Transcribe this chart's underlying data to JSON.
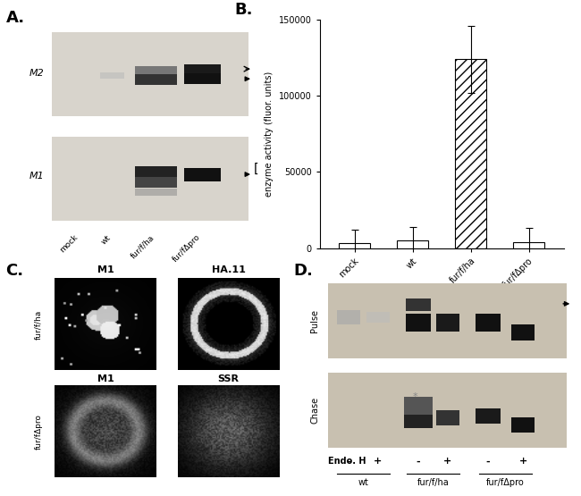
{
  "panel_A": {
    "label": "A.",
    "bg_color": "#d8d4cc",
    "lane_labels": [
      "mock",
      "wt",
      "fur/f/ha",
      "fur/fΔpro"
    ]
  },
  "panel_B": {
    "label": "B.",
    "categories": [
      "mock",
      "wt",
      "fur/f/ha",
      "fur/fΔpro"
    ],
    "values": [
      3000,
      5000,
      124000,
      4000
    ],
    "errors": [
      9000,
      9000,
      22000,
      9500
    ],
    "ylabel": "enzyme activity (fluor. units)",
    "ylim": [
      0,
      150000
    ],
    "yticks": [
      0,
      50000,
      100000,
      150000
    ],
    "ytick_labels": [
      "0",
      "50000",
      "100000",
      "150000"
    ]
  },
  "panel_C": {
    "label": "C.",
    "row_labels": [
      "fur/f/ha",
      "fur/fΔpro"
    ],
    "col_labels_top": [
      "M1",
      "HA.11"
    ],
    "col_labels_bot": [
      "M1",
      "SSR"
    ]
  },
  "panel_D": {
    "label": "D.",
    "bg_color": "#c8c0b0",
    "row_labels": [
      "Pulse",
      "Chase"
    ],
    "endo_label": "Endo. H",
    "endo_signs": [
      "-",
      "+",
      "-",
      "+",
      "-",
      "+"
    ],
    "group_labels": [
      "wt",
      "fur/f/ha",
      "fur/fΔpro"
    ]
  }
}
